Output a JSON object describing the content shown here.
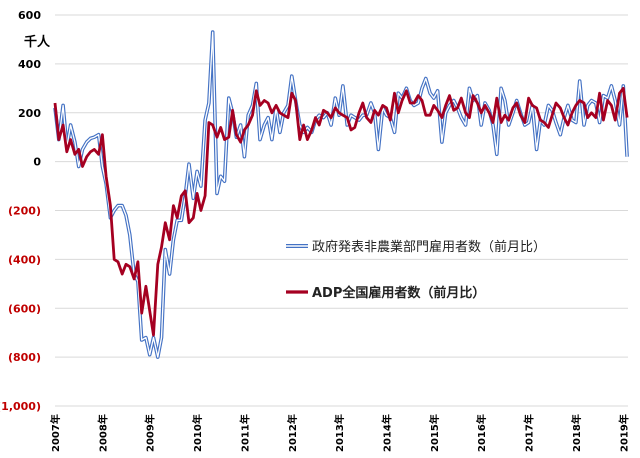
{
  "chart_data": {
    "type": "line",
    "unit_label": "千人",
    "y_ticks": [
      {
        "value": 600,
        "label": "600"
      },
      {
        "value": 400,
        "label": "400"
      },
      {
        "value": 200,
        "label": "200"
      },
      {
        "value": 0,
        "label": "0"
      },
      {
        "value": -200,
        "label": "(200)"
      },
      {
        "value": -400,
        "label": "(400)"
      },
      {
        "value": -600,
        "label": "(600)"
      },
      {
        "value": -800,
        "label": "(800)"
      },
      {
        "value": -1000,
        "label": "(1,000)"
      }
    ],
    "ylim": [
      -1000,
      600
    ],
    "x_ticks": [
      "2007年",
      "2008年",
      "2009年",
      "2010年",
      "2011年",
      "2012年",
      "2013年",
      "2014年",
      "2015年",
      "2016年",
      "2017年",
      "2018年",
      "2019年"
    ],
    "xlim": [
      2007.0,
      2019.1
    ],
    "grid": true,
    "legend_position": "center-right",
    "colors": {
      "positive_tick": "#000000",
      "negative_tick": "#c00000",
      "grid": "#d9d9d9",
      "nfp_outer": "#4472c4",
      "nfp_inner": "#ffffff",
      "adp": "#a50021"
    },
    "series": [
      {
        "name": "政府発表非農業部門雇用者数（前月比）",
        "style": "double-line",
        "x": [
          2007.0,
          2007.08,
          2007.17,
          2007.25,
          2007.33,
          2007.42,
          2007.5,
          2007.58,
          2007.67,
          2007.75,
          2007.83,
          2007.92,
          2008.0,
          2008.08,
          2008.17,
          2008.25,
          2008.33,
          2008.42,
          2008.5,
          2008.58,
          2008.67,
          2008.75,
          2008.83,
          2008.92,
          2009.0,
          2009.08,
          2009.17,
          2009.25,
          2009.33,
          2009.42,
          2009.5,
          2009.58,
          2009.67,
          2009.75,
          2009.83,
          2009.92,
          2010.0,
          2010.08,
          2010.17,
          2010.25,
          2010.33,
          2010.42,
          2010.5,
          2010.58,
          2010.67,
          2010.75,
          2010.83,
          2010.92,
          2011.0,
          2011.08,
          2011.17,
          2011.25,
          2011.33,
          2011.42,
          2011.5,
          2011.58,
          2011.67,
          2011.75,
          2011.83,
          2011.92,
          2012.0,
          2012.08,
          2012.17,
          2012.25,
          2012.33,
          2012.42,
          2012.5,
          2012.58,
          2012.67,
          2012.75,
          2012.83,
          2012.92,
          2013.0,
          2013.08,
          2013.17,
          2013.25,
          2013.33,
          2013.42,
          2013.5,
          2013.58,
          2013.67,
          2013.75,
          2013.83,
          2013.92,
          2014.0,
          2014.08,
          2014.17,
          2014.25,
          2014.33,
          2014.42,
          2014.5,
          2014.58,
          2014.67,
          2014.75,
          2014.83,
          2014.92,
          2015.0,
          2015.08,
          2015.17,
          2015.25,
          2015.33,
          2015.42,
          2015.5,
          2015.58,
          2015.67,
          2015.75,
          2015.83,
          2015.92,
          2016.0,
          2016.08,
          2016.17,
          2016.25,
          2016.33,
          2016.42,
          2016.5,
          2016.58,
          2016.67,
          2016.75,
          2016.83,
          2016.92,
          2017.0,
          2017.08,
          2017.17,
          2017.25,
          2017.33,
          2017.42,
          2017.5,
          2017.58,
          2017.67,
          2017.75,
          2017.83,
          2017.92,
          2018.0,
          2018.08,
          2018.17,
          2018.25,
          2018.33,
          2018.42,
          2018.5,
          2018.58,
          2018.67,
          2018.75,
          2018.83,
          2018.92,
          2019.0,
          2019.08
        ],
        "values": [
          220,
          90,
          230,
          60,
          150,
          80,
          -20,
          50,
          80,
          95,
          100,
          110,
          -20,
          -90,
          -230,
          -200,
          -180,
          -180,
          -220,
          -300,
          -460,
          -490,
          -730,
          -720,
          -790,
          -720,
          -800,
          -720,
          -360,
          -460,
          -320,
          -240,
          -240,
          -140,
          -10,
          -150,
          -40,
          -100,
          170,
          240,
          530,
          -130,
          -60,
          -80,
          260,
          200,
          100,
          150,
          20,
          190,
          230,
          320,
          90,
          150,
          180,
          90,
          220,
          120,
          200,
          230,
          350,
          250,
          150,
          120,
          140,
          120,
          170,
          190,
          180,
          200,
          150,
          260,
          190,
          310,
          150,
          190,
          180,
          170,
          190,
          190,
          240,
          200,
          50,
          220,
          190,
          180,
          120,
          280,
          260,
          300,
          250,
          230,
          240,
          300,
          340,
          280,
          260,
          290,
          80,
          200,
          230,
          250,
          220,
          180,
          150,
          300,
          250,
          270,
          150,
          240,
          210,
          150,
          30,
          300,
          250,
          150,
          200,
          250,
          200,
          150,
          160,
          230,
          50,
          170,
          150,
          230,
          210,
          160,
          110,
          180,
          230,
          170,
          160,
          330,
          150,
          230,
          250,
          240,
          160,
          270,
          260,
          310,
          250,
          150,
          310,
          20
        ]
      },
      {
        "name": "ADP全国雇用者数（前月比）",
        "style": "solid",
        "x": [
          2007.0,
          2007.08,
          2007.17,
          2007.25,
          2007.33,
          2007.42,
          2007.5,
          2007.58,
          2007.67,
          2007.75,
          2007.83,
          2007.92,
          2008.0,
          2008.08,
          2008.17,
          2008.25,
          2008.33,
          2008.42,
          2008.5,
          2008.58,
          2008.67,
          2008.75,
          2008.83,
          2008.92,
          2009.0,
          2009.08,
          2009.17,
          2009.25,
          2009.33,
          2009.42,
          2009.5,
          2009.58,
          2009.67,
          2009.75,
          2009.83,
          2009.92,
          2010.0,
          2010.08,
          2010.17,
          2010.25,
          2010.33,
          2010.42,
          2010.5,
          2010.58,
          2010.67,
          2010.75,
          2010.83,
          2010.92,
          2011.0,
          2011.08,
          2011.17,
          2011.25,
          2011.33,
          2011.42,
          2011.5,
          2011.58,
          2011.67,
          2011.75,
          2011.83,
          2011.92,
          2012.0,
          2012.08,
          2012.17,
          2012.25,
          2012.33,
          2012.42,
          2012.5,
          2012.58,
          2012.67,
          2012.75,
          2012.83,
          2012.92,
          2013.0,
          2013.08,
          2013.17,
          2013.25,
          2013.33,
          2013.42,
          2013.5,
          2013.58,
          2013.67,
          2013.75,
          2013.83,
          2013.92,
          2014.0,
          2014.08,
          2014.17,
          2014.25,
          2014.33,
          2014.42,
          2014.5,
          2014.58,
          2014.67,
          2014.75,
          2014.83,
          2014.92,
          2015.0,
          2015.08,
          2015.17,
          2015.25,
          2015.33,
          2015.42,
          2015.5,
          2015.58,
          2015.67,
          2015.75,
          2015.83,
          2015.92,
          2016.0,
          2016.08,
          2016.17,
          2016.25,
          2016.33,
          2016.42,
          2016.5,
          2016.58,
          2016.67,
          2016.75,
          2016.83,
          2016.92,
          2017.0,
          2017.08,
          2017.17,
          2017.25,
          2017.33,
          2017.42,
          2017.5,
          2017.58,
          2017.67,
          2017.75,
          2017.83,
          2017.92,
          2018.0,
          2018.08,
          2018.17,
          2018.25,
          2018.33,
          2018.42,
          2018.5,
          2018.58,
          2018.67,
          2018.75,
          2018.83,
          2018.92,
          2019.0,
          2019.08
        ],
        "values": [
          240,
          90,
          150,
          40,
          90,
          30,
          50,
          -20,
          20,
          40,
          50,
          30,
          110,
          -60,
          -180,
          -400,
          -410,
          -460,
          -420,
          -430,
          -480,
          -410,
          -620,
          -510,
          -610,
          -710,
          -420,
          -350,
          -250,
          -320,
          -180,
          -230,
          -140,
          -120,
          -250,
          -230,
          -130,
          -200,
          -140,
          160,
          150,
          100,
          140,
          90,
          100,
          210,
          110,
          80,
          130,
          150,
          190,
          290,
          230,
          250,
          240,
          200,
          230,
          200,
          190,
          180,
          280,
          250,
          90,
          150,
          90,
          130,
          180,
          150,
          210,
          200,
          180,
          220,
          200,
          190,
          180,
          130,
          140,
          200,
          240,
          180,
          160,
          210,
          190,
          230,
          220,
          170,
          280,
          200,
          250,
          290,
          240,
          240,
          270,
          250,
          190,
          190,
          230,
          210,
          180,
          230,
          270,
          210,
          220,
          260,
          200,
          180,
          270,
          240,
          200,
          230,
          200,
          160,
          260,
          160,
          190,
          170,
          220,
          240,
          190,
          160,
          260,
          230,
          220,
          170,
          160,
          140,
          190,
          240,
          220,
          180,
          150,
          200,
          230,
          250,
          240,
          180,
          200,
          180,
          280,
          170,
          250,
          230,
          170,
          280,
          300,
          180
        ]
      }
    ]
  }
}
